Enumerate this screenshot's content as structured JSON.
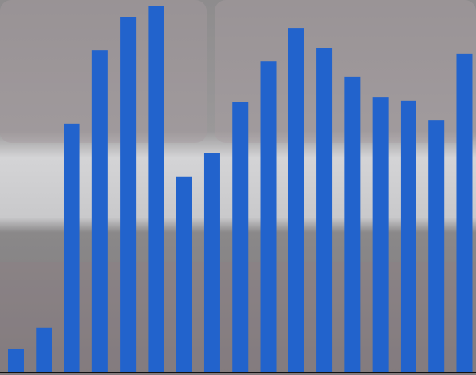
{
  "chart_data": {
    "type": "bar",
    "categories": [
      null,
      null,
      null,
      null,
      null,
      null,
      null,
      null,
      null,
      null,
      null,
      null,
      null,
      null,
      null,
      null,
      null
    ],
    "values": [
      6.2,
      11.8,
      66.7,
      86.5,
      95.3,
      98.3,
      52.4,
      58.8,
      72.6,
      83.5,
      92.5,
      87.0,
      79.3,
      73.9,
      72.9,
      67.7,
      85.5
    ],
    "color": "#2263cc",
    "ylim": [
      0,
      100
    ]
  }
}
